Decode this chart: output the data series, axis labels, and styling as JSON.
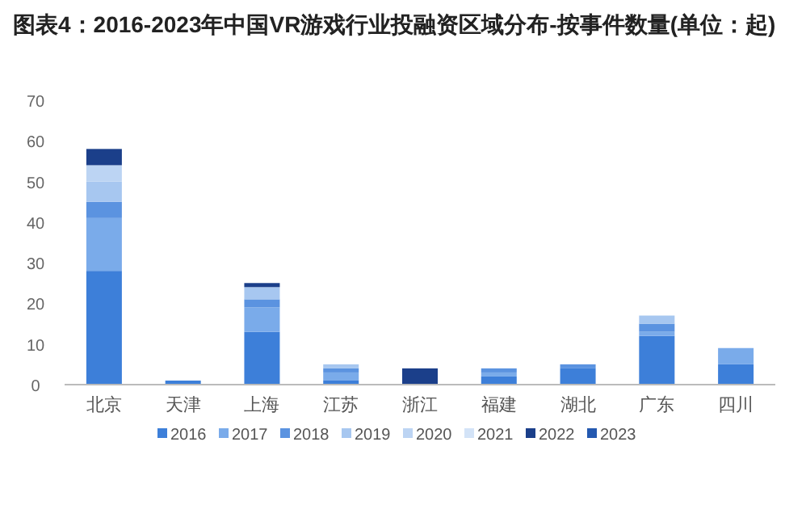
{
  "chart_data": {
    "type": "bar",
    "title": "图表4：2016-2023年中国VR游戏行业投融资区域分布-按事件数量(单位：起)",
    "categories": [
      "北京",
      "天津",
      "上海",
      "江苏",
      "浙江",
      "福建",
      "湖北",
      "广东",
      "四川"
    ],
    "stacked": true,
    "ylim": [
      0,
      70
    ],
    "yticks": [
      0,
      10,
      20,
      30,
      40,
      50,
      60,
      70
    ],
    "grid": false,
    "legend": "bottom",
    "series": [
      {
        "name": "2016",
        "color": "#3d7fd9",
        "values": [
          28,
          1,
          13,
          1,
          0,
          2,
          4,
          12,
          5
        ]
      },
      {
        "name": "2017",
        "color": "#7aabea",
        "values": [
          13,
          0,
          6,
          2,
          0,
          1,
          0,
          1,
          4
        ]
      },
      {
        "name": "2018",
        "color": "#5b93e0",
        "values": [
          4,
          0,
          2,
          1,
          0,
          1,
          1,
          2,
          0
        ]
      },
      {
        "name": "2019",
        "color": "#a7c7f0",
        "values": [
          5,
          0,
          3,
          1,
          0,
          0,
          0,
          2,
          0
        ]
      },
      {
        "name": "2020",
        "color": "#bcd4f3",
        "values": [
          4,
          0,
          0,
          0,
          0,
          0,
          0,
          0,
          0
        ]
      },
      {
        "name": "2021",
        "color": "#d3e3f7",
        "values": [
          0,
          0,
          0,
          0,
          0,
          0,
          0,
          0,
          0
        ]
      },
      {
        "name": "2022",
        "color": "#1b3f8a",
        "values": [
          4,
          0,
          1,
          0,
          4,
          0,
          0,
          0,
          0
        ]
      },
      {
        "name": "2023",
        "color": "#2459b0",
        "values": [
          0,
          0,
          0,
          0,
          0,
          0,
          0,
          0,
          0
        ]
      }
    ]
  }
}
